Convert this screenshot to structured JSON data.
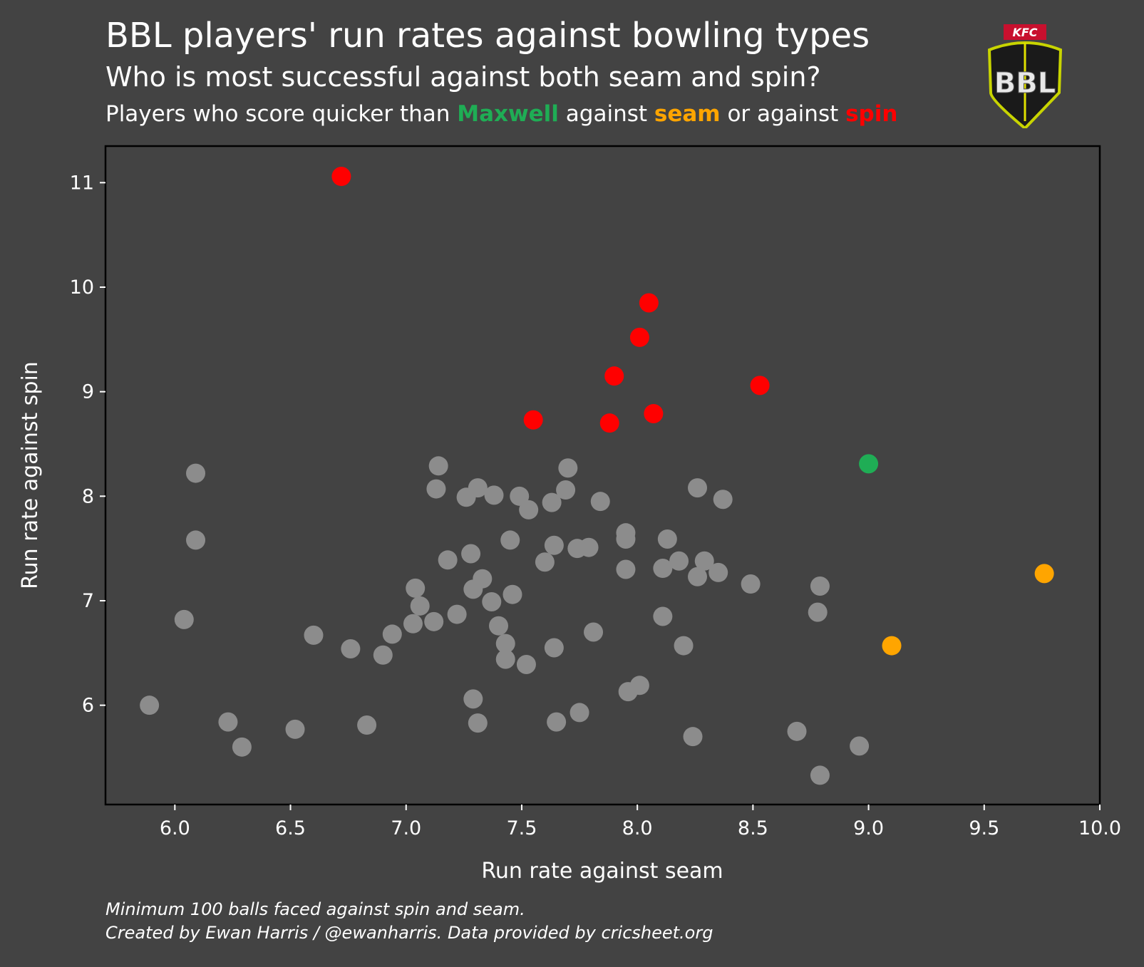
{
  "header": {
    "title": "BBL players' run rates against bowling types",
    "subtitle": "Who is most successful against both seam and spin?",
    "legend_prefix": "Players who score quicker than ",
    "legend_maxwell": "Maxwell",
    "legend_mid1": " against ",
    "legend_seam": "seam",
    "legend_mid2": " or against ",
    "legend_spin": "spin"
  },
  "logo": {
    "top_text": "KFC",
    "main_text": "BBL"
  },
  "footer": {
    "line1": "Minimum 100 balls faced against spin and seam.",
    "line2": "Created by Ewan Harris / @ewanharris. Data provided by cricsheet.org"
  },
  "colors": {
    "background": "#434343",
    "other": "#8c8c8c",
    "maxwell": "#1fad55",
    "seam": "#ffa500",
    "spin": "#ff0000"
  },
  "chart_data": {
    "type": "scatter",
    "xlabel": "Run rate against seam",
    "ylabel": "Run rate against spin",
    "xlim": [
      5.7,
      10.0
    ],
    "ylim": [
      5.05,
      11.35
    ],
    "xticks": [
      "6.0",
      "6.5",
      "7.0",
      "7.5",
      "8.0",
      "8.5",
      "9.0",
      "9.5",
      "10.0"
    ],
    "yticks": [
      "6",
      "7",
      "8",
      "9",
      "10",
      "11"
    ],
    "series": [
      {
        "group": "other",
        "points": [
          [
            5.89,
            6.0
          ],
          [
            6.04,
            6.82
          ],
          [
            6.09,
            8.22
          ],
          [
            6.09,
            7.58
          ],
          [
            6.23,
            5.84
          ],
          [
            6.29,
            5.6
          ],
          [
            6.52,
            5.77
          ],
          [
            6.6,
            6.67
          ],
          [
            6.76,
            6.54
          ],
          [
            6.83,
            5.81
          ],
          [
            6.9,
            6.48
          ],
          [
            6.94,
            6.68
          ],
          [
            7.03,
            6.78
          ],
          [
            7.04,
            7.12
          ],
          [
            7.06,
            6.95
          ],
          [
            7.12,
            6.8
          ],
          [
            7.13,
            8.07
          ],
          [
            7.14,
            8.29
          ],
          [
            7.18,
            7.39
          ],
          [
            7.22,
            6.87
          ],
          [
            7.26,
            7.99
          ],
          [
            7.28,
            7.45
          ],
          [
            7.29,
            7.11
          ],
          [
            7.29,
            6.06
          ],
          [
            7.31,
            8.08
          ],
          [
            7.31,
            5.83
          ],
          [
            7.33,
            7.21
          ],
          [
            7.37,
            6.99
          ],
          [
            7.38,
            8.01
          ],
          [
            7.4,
            6.76
          ],
          [
            7.43,
            6.59
          ],
          [
            7.43,
            6.44
          ],
          [
            7.45,
            7.58
          ],
          [
            7.46,
            7.06
          ],
          [
            7.49,
            8.0
          ],
          [
            7.52,
            6.39
          ],
          [
            7.53,
            7.87
          ],
          [
            7.6,
            7.37
          ],
          [
            7.63,
            7.94
          ],
          [
            7.64,
            7.53
          ],
          [
            7.64,
            6.55
          ],
          [
            7.65,
            5.84
          ],
          [
            7.69,
            8.06
          ],
          [
            7.7,
            8.27
          ],
          [
            7.74,
            7.5
          ],
          [
            7.75,
            5.93
          ],
          [
            7.79,
            7.51
          ],
          [
            7.81,
            6.7
          ],
          [
            7.84,
            7.95
          ],
          [
            7.95,
            7.65
          ],
          [
            7.95,
            7.59
          ],
          [
            7.95,
            7.3
          ],
          [
            7.96,
            6.13
          ],
          [
            8.01,
            6.19
          ],
          [
            8.11,
            7.31
          ],
          [
            8.11,
            6.85
          ],
          [
            8.13,
            7.59
          ],
          [
            8.18,
            7.38
          ],
          [
            8.2,
            6.57
          ],
          [
            8.24,
            5.7
          ],
          [
            8.26,
            8.08
          ],
          [
            8.26,
            7.23
          ],
          [
            8.29,
            7.38
          ],
          [
            8.35,
            7.27
          ],
          [
            8.37,
            7.97
          ],
          [
            8.49,
            7.16
          ],
          [
            8.69,
            5.75
          ],
          [
            8.78,
            6.89
          ],
          [
            8.79,
            7.14
          ],
          [
            8.79,
            5.33
          ],
          [
            8.96,
            5.61
          ]
        ]
      },
      {
        "group": "maxwell",
        "name": "Maxwell",
        "points": [
          [
            9.0,
            8.31
          ]
        ]
      },
      {
        "group": "seam",
        "name": "seam",
        "points": [
          [
            9.1,
            6.57
          ],
          [
            9.76,
            7.26
          ]
        ]
      },
      {
        "group": "spin",
        "name": "spin",
        "points": [
          [
            6.72,
            11.06
          ],
          [
            7.55,
            8.73
          ],
          [
            7.88,
            8.7
          ],
          [
            7.9,
            9.15
          ],
          [
            8.01,
            9.52
          ],
          [
            8.05,
            9.85
          ],
          [
            8.07,
            8.79
          ],
          [
            8.53,
            9.06
          ]
        ]
      }
    ]
  }
}
